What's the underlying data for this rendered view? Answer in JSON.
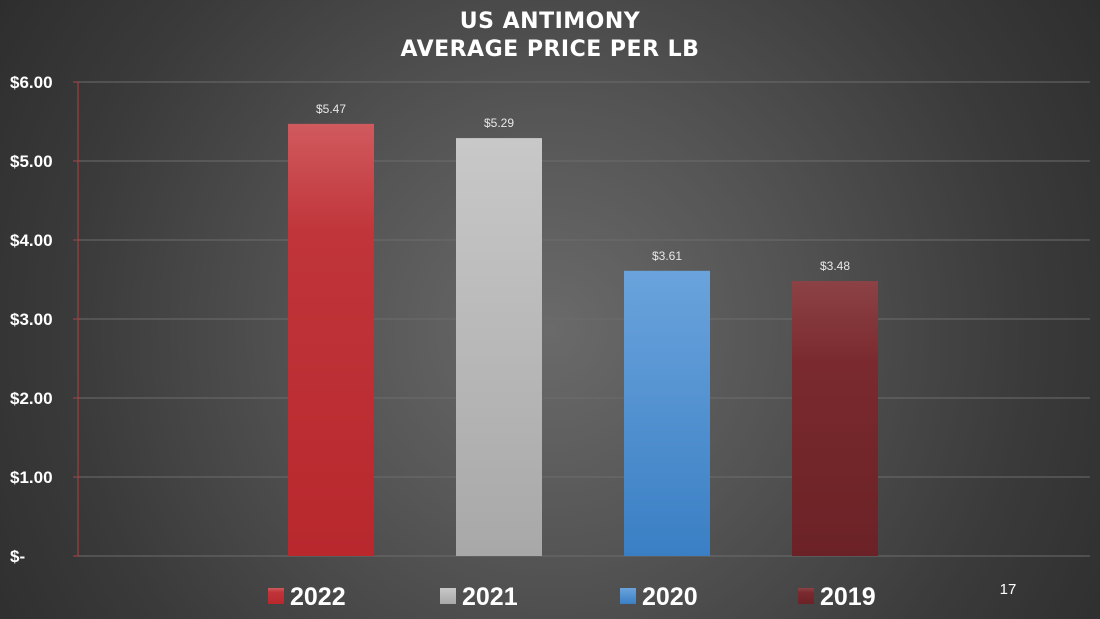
{
  "slide": {
    "title_line1": "US ANTIMONY",
    "title_line2": "AVERAGE PRICE PER LB",
    "page_number": "17"
  },
  "chart_data": {
    "type": "bar",
    "title": "US ANTIMONY AVERAGE PRICE PER LB",
    "categories": [
      "2022",
      "2021",
      "2020",
      "2019"
    ],
    "values": [
      5.47,
      5.29,
      3.61,
      3.48
    ],
    "data_labels": [
      "$5.47",
      "$5.29",
      "$3.61",
      "$3.48"
    ],
    "colors": [
      "#c0353a",
      "#b8b8b8",
      "#4a8ccc",
      "#7a2a2e"
    ],
    "ylim": [
      0,
      6
    ],
    "yticks": [
      0,
      1,
      2,
      3,
      4,
      5,
      6
    ],
    "ytick_labels": [
      "$-",
      "$1.00",
      "$2.00",
      "$3.00",
      "$4.00",
      "$5.00",
      "$6.00"
    ],
    "grid": true,
    "legend_position": "bottom",
    "xlabel": "",
    "ylabel": ""
  }
}
